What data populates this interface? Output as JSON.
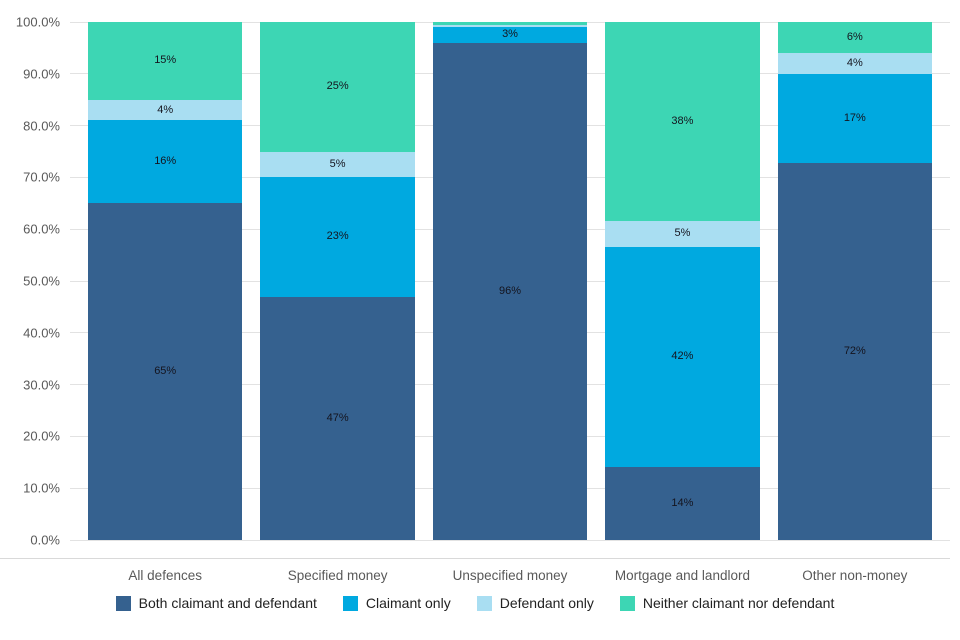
{
  "chart_data": {
    "type": "bar",
    "subtype": "stacked-100-percent",
    "title": "",
    "xlabel": "",
    "ylabel": "",
    "ylim": [
      0,
      100
    ],
    "grid": true,
    "legend_position": "bottom",
    "y_ticks": [
      "0.0%",
      "10.0%",
      "20.0%",
      "30.0%",
      "40.0%",
      "50.0%",
      "60.0%",
      "70.0%",
      "80.0%",
      "90.0%",
      "100.0%"
    ],
    "categories": [
      "All defences",
      "Specified money",
      "Unspecified money",
      "Mortgage and landlord",
      "Other non-money"
    ],
    "series": [
      {
        "name": "Both claimant and defendant",
        "color": "#35618f",
        "values": [
          65,
          47,
          96,
          14,
          72
        ],
        "labels": [
          "65%",
          "47%",
          "96%",
          "14%",
          "72%"
        ]
      },
      {
        "name": "Claimant only",
        "color": "#00a9e0",
        "values": [
          16,
          23,
          3,
          42,
          17
        ],
        "labels": [
          "16%",
          "23%",
          "3%",
          "42%",
          "17%"
        ]
      },
      {
        "name": "Defendant only",
        "color": "#a9def2",
        "values": [
          4,
          5,
          0.5,
          5,
          4
        ],
        "labels": [
          "4%",
          "5%",
          "",
          "5%",
          "4%"
        ]
      },
      {
        "name": "Neither claimant nor defendant",
        "color": "#3dd6b4",
        "values": [
          15,
          25,
          0.5,
          38,
          6
        ],
        "labels": [
          "15%",
          "25%",
          "",
          "38%",
          "6%"
        ]
      }
    ]
  }
}
